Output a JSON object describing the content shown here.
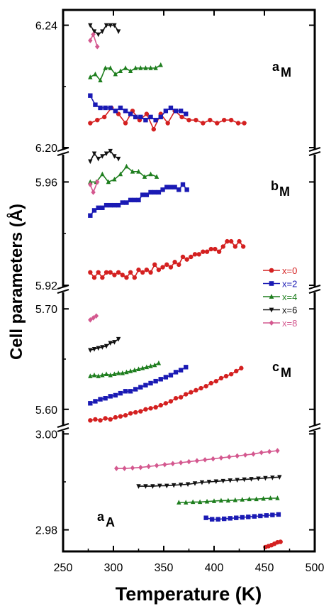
{
  "chart_data": {
    "type": "scatter",
    "xlabel": "Temperature (K)",
    "ylabel": "Cell parameters (Å)",
    "xlim": [
      250,
      500
    ],
    "x_ticks": [
      "250",
      "300",
      "350",
      "400",
      "450",
      "500"
    ],
    "legend": {
      "placement": "right-middle",
      "entries": [
        {
          "label": "x=0",
          "color": "#d42020",
          "marker": "circle"
        },
        {
          "label": "x=2",
          "color": "#1a1ab4",
          "marker": "square"
        },
        {
          "label": "x=4",
          "color": "#1e7e1e",
          "marker": "triangle-up"
        },
        {
          "label": "x=6",
          "color": "#111111",
          "marker": "triangle-down"
        },
        {
          "label": "x=8",
          "color": "#d4588f",
          "marker": "diamond"
        }
      ]
    },
    "panels": [
      {
        "label": "a",
        "subscript": "M",
        "ylim": [
          6.2,
          6.245
        ],
        "y_ticks": [
          "6.20",
          "6.24"
        ],
        "y_tick_values": [
          6.2,
          6.24
        ],
        "series": [
          {
            "name": "x=0",
            "x": [
              277,
              284,
              291,
              298,
              305,
              312,
              319,
              326,
              333,
              340,
              347,
              354,
              361,
              368,
              375,
              382,
              389,
              396,
              403,
              410,
              417,
              424,
              430
            ],
            "y": [
              6.208,
              6.209,
              6.21,
              6.213,
              6.211,
              6.208,
              6.212,
              6.209,
              6.211,
              6.206,
              6.211,
              6.208,
              6.212,
              6.21,
              6.209,
              6.209,
              6.208,
              6.209,
              6.208,
              6.209,
              6.209,
              6.208,
              6.208
            ]
          },
          {
            "name": "x=2",
            "x": [
              277,
              282,
              287,
              292,
              297,
              302,
              307,
              312,
              317,
              322,
              327,
              332,
              337,
              342,
              347,
              352,
              357,
              362,
              367,
              372
            ],
            "y": [
              6.217,
              6.214,
              6.213,
              6.213,
              6.213,
              6.212,
              6.213,
              6.212,
              6.211,
              6.21,
              6.21,
              6.209,
              6.21,
              6.209,
              6.21,
              6.212,
              6.213,
              6.212,
              6.212,
              6.211
            ]
          },
          {
            "name": "x=4",
            "x": [
              277,
              282,
              287,
              292,
              297,
              302,
              307,
              312,
              317,
              322,
              327,
              332,
              337,
              342,
              347
            ],
            "y": [
              6.223,
              6.224,
              6.222,
              6.226,
              6.226,
              6.224,
              6.225,
              6.226,
              6.225,
              6.226,
              6.226,
              6.226,
              6.226,
              6.226,
              6.227
            ]
          },
          {
            "name": "x=6",
            "x": [
              277,
              281,
              285,
              289,
              293,
              297,
              301,
              305
            ],
            "y": [
              6.24,
              6.238,
              6.237,
              6.238,
              6.24,
              6.24,
              6.24,
              6.238
            ]
          },
          {
            "name": "x=8",
            "x": [
              277,
              280,
              284
            ],
            "y": [
              6.235,
              6.237,
              6.233
            ]
          }
        ]
      },
      {
        "label": "b",
        "subscript": "M",
        "ylim": [
          5.92,
          5.97
        ],
        "y_ticks": [
          "5.92",
          "5.96"
        ],
        "y_tick_values": [
          5.92,
          5.96
        ],
        "series": [
          {
            "name": "x=0",
            "x": [
              277,
              281,
              285,
              289,
              293,
              297,
              301,
              305,
              309,
              313,
              317,
              321,
              325,
              329,
              333,
              337,
              341,
              345,
              349,
              353,
              357,
              361,
              365,
              369,
              373,
              377,
              381,
              385,
              389,
              393,
              397,
              401,
              405,
              409,
              413,
              417,
              421,
              425,
              429
            ],
            "y": [
              5.925,
              5.923,
              5.925,
              5.923,
              5.925,
              5.925,
              5.924,
              5.925,
              5.924,
              5.923,
              5.925,
              5.923,
              5.926,
              5.925,
              5.926,
              5.925,
              5.928,
              5.926,
              5.927,
              5.928,
              5.927,
              5.929,
              5.928,
              5.931,
              5.93,
              5.931,
              5.932,
              5.932,
              5.933,
              5.933,
              5.934,
              5.934,
              5.933,
              5.935,
              5.937,
              5.937,
              5.935,
              5.937,
              5.935
            ]
          },
          {
            "name": "x=2",
            "x": [
              277,
              281,
              285,
              289,
              293,
              297,
              301,
              305,
              309,
              313,
              317,
              321,
              325,
              329,
              333,
              337,
              341,
              345,
              349,
              353,
              357,
              361,
              365,
              369,
              373
            ],
            "y": [
              5.947,
              5.949,
              5.95,
              5.95,
              5.951,
              5.951,
              5.951,
              5.951,
              5.952,
              5.952,
              5.953,
              5.953,
              5.953,
              5.955,
              5.955,
              5.956,
              5.956,
              5.956,
              5.957,
              5.958,
              5.958,
              5.958,
              5.957,
              5.959,
              5.957
            ]
          },
          {
            "name": "x=4",
            "x": [
              277,
              283,
              289,
              295,
              301,
              307,
              313,
              319,
              325,
              331,
              337,
              343
            ],
            "y": [
              5.96,
              5.96,
              5.963,
              5.96,
              5.961,
              5.963,
              5.966,
              5.964,
              5.964,
              5.962,
              5.963,
              5.962
            ]
          },
          {
            "name": "x=6",
            "x": [
              277,
              281,
              285,
              289,
              293,
              297,
              301,
              305
            ],
            "y": [
              5.968,
              5.971,
              5.969,
              5.97,
              5.971,
              5.972,
              5.97,
              5.969
            ]
          },
          {
            "name": "x=8",
            "x": [
              277,
              280,
              284
            ],
            "y": [
              5.959,
              5.956,
              5.96
            ]
          }
        ]
      },
      {
        "label": "c",
        "subscript": "M",
        "ylim": [
          5.585,
          5.715
        ],
        "y_ticks": [
          "5.60",
          "5.70"
        ],
        "y_tick_values": [
          5.6,
          5.7
        ],
        "series": [
          {
            "name": "x=0",
            "x": [
              277,
              282,
              287,
              292,
              297,
              302,
              307,
              312,
              317,
              322,
              327,
              332,
              337,
              342,
              347,
              352,
              357,
              362,
              367,
              372,
              377,
              382,
              387,
              392,
              397,
              402,
              407,
              412,
              417,
              422,
              427
            ],
            "y": [
              5.589,
              5.59,
              5.589,
              5.591,
              5.59,
              5.592,
              5.593,
              5.594,
              5.596,
              5.597,
              5.598,
              5.6,
              5.601,
              5.602,
              5.604,
              5.606,
              5.608,
              5.611,
              5.612,
              5.615,
              5.617,
              5.619,
              5.621,
              5.623,
              5.626,
              5.628,
              5.631,
              5.633,
              5.635,
              5.638,
              5.641
            ]
          },
          {
            "name": "x=2",
            "x": [
              277,
              282,
              287,
              292,
              297,
              302,
              307,
              312,
              317,
              322,
              327,
              332,
              337,
              342,
              347,
              352,
              357,
              362,
              367,
              372
            ],
            "y": [
              5.606,
              5.608,
              5.61,
              5.611,
              5.613,
              5.614,
              5.616,
              5.618,
              5.618,
              5.62,
              5.622,
              5.624,
              5.626,
              5.628,
              5.63,
              5.632,
              5.634,
              5.637,
              5.639,
              5.642
            ]
          },
          {
            "name": "x=4",
            "x": [
              277,
              281,
              285,
              289,
              293,
              297,
              301,
              305,
              309,
              313,
              317,
              321,
              325,
              329,
              333,
              337,
              341,
              345
            ],
            "y": [
              5.633,
              5.634,
              5.633,
              5.634,
              5.635,
              5.634,
              5.635,
              5.636,
              5.636,
              5.637,
              5.638,
              5.639,
              5.64,
              5.641,
              5.642,
              5.643,
              5.644,
              5.646
            ]
          },
          {
            "name": "x=6",
            "x": [
              277,
              281,
              285,
              289,
              293,
              297,
              301,
              305
            ],
            "y": [
              5.659,
              5.66,
              5.661,
              5.662,
              5.663,
              5.666,
              5.667,
              5.67
            ]
          },
          {
            "name": "x=8",
            "x": [
              277,
              280,
              283
            ],
            "y": [
              5.689,
              5.691,
              5.693
            ]
          }
        ]
      },
      {
        "label": "a",
        "subscript": "A",
        "ylim": [
          2.9755,
          3.0005
        ],
        "y_ticks": [
          "2.98",
          "3.00"
        ],
        "y_tick_values": [
          2.98,
          3.0
        ],
        "series": [
          {
            "name": "x=0",
            "x": [
              451,
              454,
              457,
              460,
              463,
              466
            ],
            "y": [
              2.9764,
              2.9766,
              2.9768,
              2.9771,
              2.9774,
              2.9775
            ]
          },
          {
            "name": "x=2",
            "x": [
              392,
              398,
              404,
              410,
              416,
              422,
              428,
              434,
              440,
              446,
              452,
              458,
              464
            ],
            "y": [
              2.9825,
              2.9822,
              2.9822,
              2.9823,
              2.9824,
              2.9825,
              2.9826,
              2.9827,
              2.9828,
              2.9829,
              2.983,
              2.9831,
              2.9832
            ]
          },
          {
            "name": "x=4",
            "x": [
              365,
              372,
              379,
              386,
              393,
              400,
              407,
              414,
              421,
              428,
              435,
              442,
              449,
              456,
              463
            ],
            "y": [
              2.9857,
              2.9857,
              2.9858,
              2.9858,
              2.9859,
              2.986,
              2.9861,
              2.9861,
              2.9862,
              2.9863,
              2.9864,
              2.9864,
              2.9865,
              2.9866,
              2.9866
            ]
          },
          {
            "name": "x=6",
            "x": [
              325,
              332,
              339,
              346,
              353,
              360,
              367,
              374,
              381,
              388,
              395,
              402,
              409,
              416,
              423,
              430,
              437,
              444,
              451,
              458,
              465
            ],
            "y": [
              2.9891,
              2.9891,
              2.9891,
              2.9892,
              2.9892,
              2.9893,
              2.9894,
              2.9895,
              2.9897,
              2.9899,
              2.99,
              2.9901,
              2.9902,
              2.9903,
              2.9904,
              2.9905,
              2.9906,
              2.9907,
              2.9908,
              2.9909,
              2.991
            ]
          },
          {
            "name": "x=8",
            "x": [
              303,
              311,
              319,
              327,
              335,
              343,
              351,
              359,
              367,
              375,
              383,
              391,
              399,
              407,
              415,
              423,
              431,
              439,
              447,
              455,
              463
            ],
            "y": [
              2.9928,
              2.9928,
              2.9929,
              2.993,
              2.9932,
              2.9934,
              2.9936,
              2.9938,
              2.994,
              2.9942,
              2.9944,
              2.9946,
              2.9948,
              2.995,
              2.9952,
              2.9954,
              2.9956,
              2.9958,
              2.9961,
              2.9963,
              2.9965
            ]
          }
        ]
      }
    ]
  }
}
